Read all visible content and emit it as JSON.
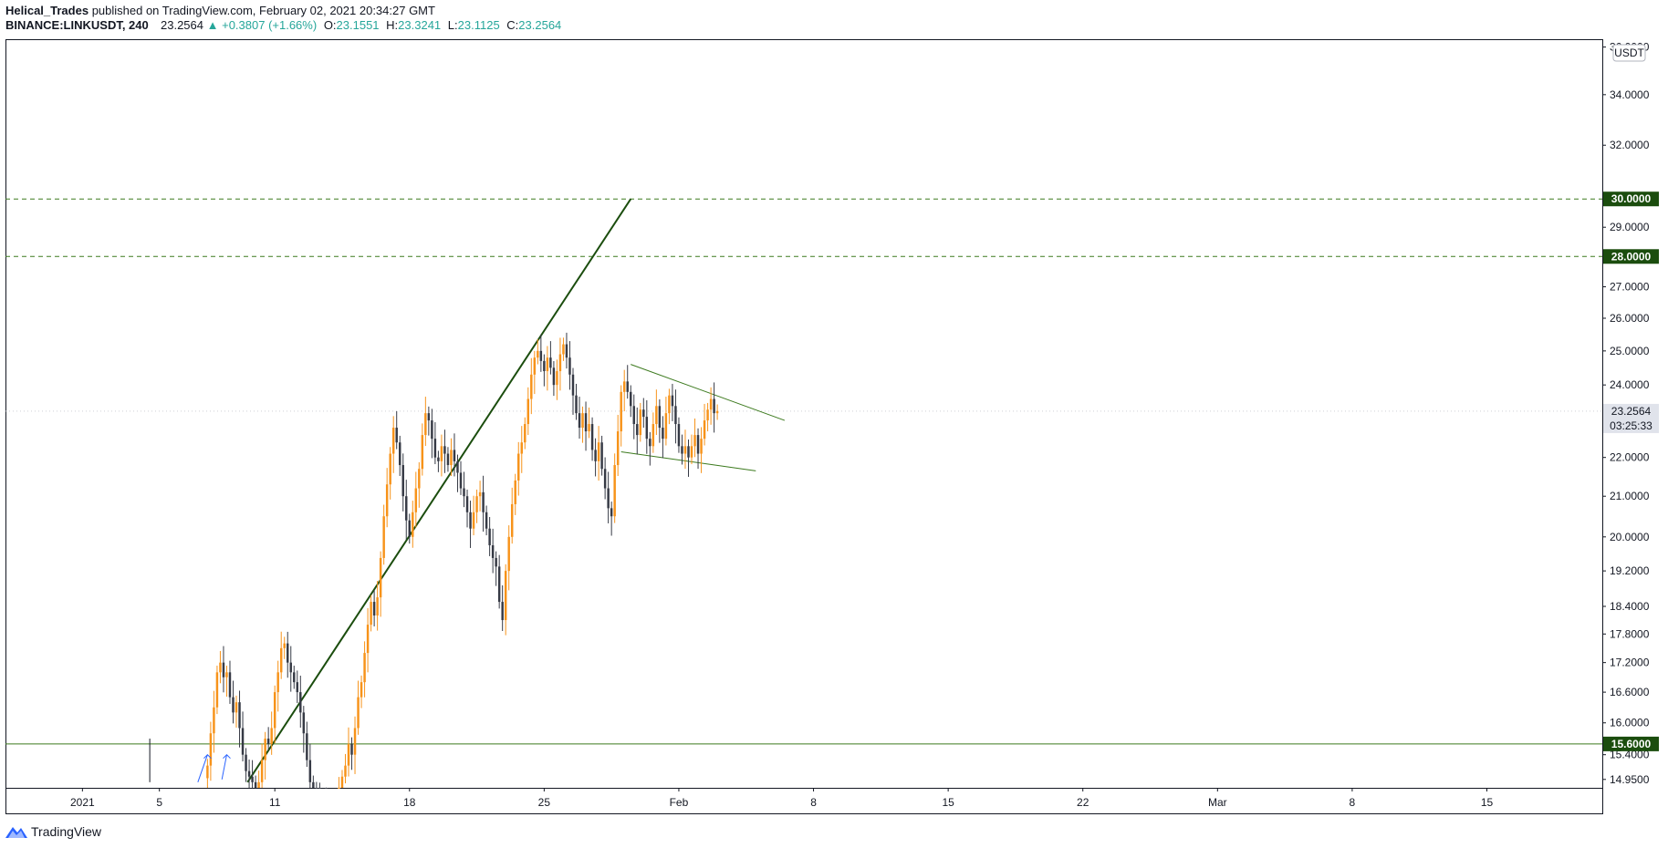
{
  "header": {
    "author": "Helical_Trades",
    "published": "published on TradingView.com, February 02, 2021 20:34:27 GMT",
    "symbol": "BINANCE:LINKUSDT, 240",
    "last": "23.2564",
    "change": "▲ +0.3807 (+1.66%)",
    "o_label": "O:",
    "o_value": "23.1551",
    "h_label": "H:",
    "h_value": "23.3241",
    "l_label": "L:",
    "l_value": "23.1125",
    "c_label": "C:",
    "c_value": "23.2564"
  },
  "footer": {
    "brand": "TradingView",
    "logo_icon": "tradingview-logo-icon"
  },
  "colors": {
    "bull": "#f7931a",
    "bear": "#363a45",
    "line_dark": "#1b4d0e",
    "line_light": "#3c7a1e",
    "tag_bg": "#1b4d0e",
    "price_tag_bg": "#e0e3eb"
  },
  "chart_data": {
    "type": "candlestick",
    "symbol": "BINANCE:LINKUSDT",
    "timeframe": "240",
    "y_scale": "log",
    "currency": "USDT",
    "ylim": [
      14.8,
      36.3
    ],
    "y_ticks": [
      "36.0000",
      "34.0000",
      "32.0000",
      "29.0000",
      "27.0000",
      "26.0000",
      "25.0000",
      "24.0000",
      "22.0000",
      "21.0000",
      "20.0000",
      "19.2000",
      "18.4000",
      "17.8000",
      "17.2000",
      "16.6000",
      "16.0000",
      "15.4000",
      "14.9500"
    ],
    "x_start": "2020-12-28",
    "x_end": "2021-03-21",
    "x_tick_labels": [
      {
        "date": "2021-01-01",
        "label": "2021"
      },
      {
        "date": "2021-01-05",
        "label": "5"
      },
      {
        "date": "2021-01-11",
        "label": "11"
      },
      {
        "date": "2021-01-18",
        "label": "18"
      },
      {
        "date": "2021-01-25",
        "label": "25"
      },
      {
        "date": "2021-02-01",
        "label": "Feb"
      },
      {
        "date": "2021-02-08",
        "label": "8"
      },
      {
        "date": "2021-02-15",
        "label": "15"
      },
      {
        "date": "2021-02-22",
        "label": "22"
      },
      {
        "date": "2021-03-01",
        "label": "Mar"
      },
      {
        "date": "2021-03-08",
        "label": "8"
      },
      {
        "date": "2021-03-15",
        "label": "15"
      }
    ],
    "candle_start": "2021-01-07T12:00",
    "candle_interval_hours": 4,
    "closes": [
      15.2,
      15.8,
      16.3,
      17.0,
      17.2,
      16.9,
      17.0,
      16.5,
      16.2,
      16.4,
      15.9,
      15.4,
      15.1,
      15.0,
      14.9,
      14.7,
      14.9,
      15.3,
      15.7,
      15.6,
      15.9,
      16.6,
      17.0,
      17.5,
      17.6,
      17.2,
      17.0,
      16.8,
      16.6,
      16.2,
      15.8,
      15.3,
      14.9,
      14.7,
      14.6,
      14.5,
      14.6,
      14.3,
      14.2,
      14.1,
      14.3,
      14.7,
      15.0,
      15.2,
      15.6,
      15.4,
      15.9,
      16.5,
      16.8,
      17.4,
      18.0,
      18.5,
      18.2,
      18.6,
      19.5,
      20.5,
      21.3,
      22.1,
      22.8,
      22.4,
      21.8,
      21.0,
      20.4,
      20.0,
      20.6,
      21.2,
      21.7,
      22.6,
      23.2,
      23.0,
      22.5,
      22.0,
      21.9,
      22.3,
      22.1,
      21.8,
      22.2,
      21.9,
      21.6,
      21.2,
      21.0,
      20.6,
      20.2,
      20.6,
      21.0,
      21.1,
      20.6,
      20.2,
      19.8,
      19.5,
      19.3,
      18.5,
      18.1,
      19.2,
      20.0,
      20.8,
      21.4,
      22.1,
      22.4,
      22.9,
      23.6,
      24.3,
      24.8,
      25.0,
      24.7,
      24.4,
      24.8,
      24.5,
      24.0,
      24.4,
      24.9,
      25.2,
      24.8,
      24.3,
      23.7,
      23.2,
      22.8,
      23.2,
      22.7,
      22.9,
      22.2,
      21.9,
      22.4,
      21.7,
      21.2,
      20.7,
      20.5,
      21.8,
      22.7,
      23.8,
      24.1,
      23.8,
      23.4,
      22.9,
      22.6,
      23.3,
      23.1,
      22.5,
      22.3,
      22.9,
      23.4,
      22.8,
      22.5,
      23.2,
      23.7,
      23.4,
      22.9,
      22.3,
      22.1,
      22.3,
      22.0,
      22.3,
      22.6,
      22.1,
      22.5,
      23.0,
      23.3,
      23.6,
      23.2,
      23.26
    ],
    "levels": [
      {
        "price": 30.0,
        "label": "30.0000",
        "style": "dashed"
      },
      {
        "price": 28.0,
        "label": "28.0000",
        "style": "dashed"
      },
      {
        "price": 15.6,
        "label": "15.6000",
        "style": "solid"
      }
    ],
    "last_price": {
      "value": 23.2564,
      "label": "23.2564",
      "countdown": "03:25:33"
    },
    "trendlines": [
      {
        "from": {
          "date": "2021-01-09T14:00",
          "price": 14.9
        },
        "to": {
          "date": "2021-01-29T12:00",
          "price": 30.0
        },
        "color": "#1b4d0e",
        "width": 2
      },
      {
        "from": {
          "date": "2021-01-29T12:00",
          "price": 24.6
        },
        "to": {
          "date": "2021-02-06T12:00",
          "price": 23.0
        },
        "color": "#3c7a1e",
        "width": 1
      },
      {
        "from": {
          "date": "2021-01-29T00:00",
          "price": 22.15
        },
        "to": {
          "date": "2021-02-05T00:00",
          "price": 21.65
        },
        "color": "#3c7a1e",
        "width": 1
      }
    ],
    "arrows": [
      {
        "from": {
          "date": "2021-01-07T00:00",
          "price": 14.9
        },
        "to": {
          "date": "2021-01-07T12:00",
          "price": 15.4
        }
      },
      {
        "from": {
          "date": "2021-01-08T06:00",
          "price": 14.95
        },
        "to": {
          "date": "2021-01-08T12:00",
          "price": 15.4
        }
      }
    ],
    "markers": [
      {
        "date": "2021-01-04T12:00",
        "price_top": 15.7,
        "price_bottom": 14.9
      }
    ]
  }
}
